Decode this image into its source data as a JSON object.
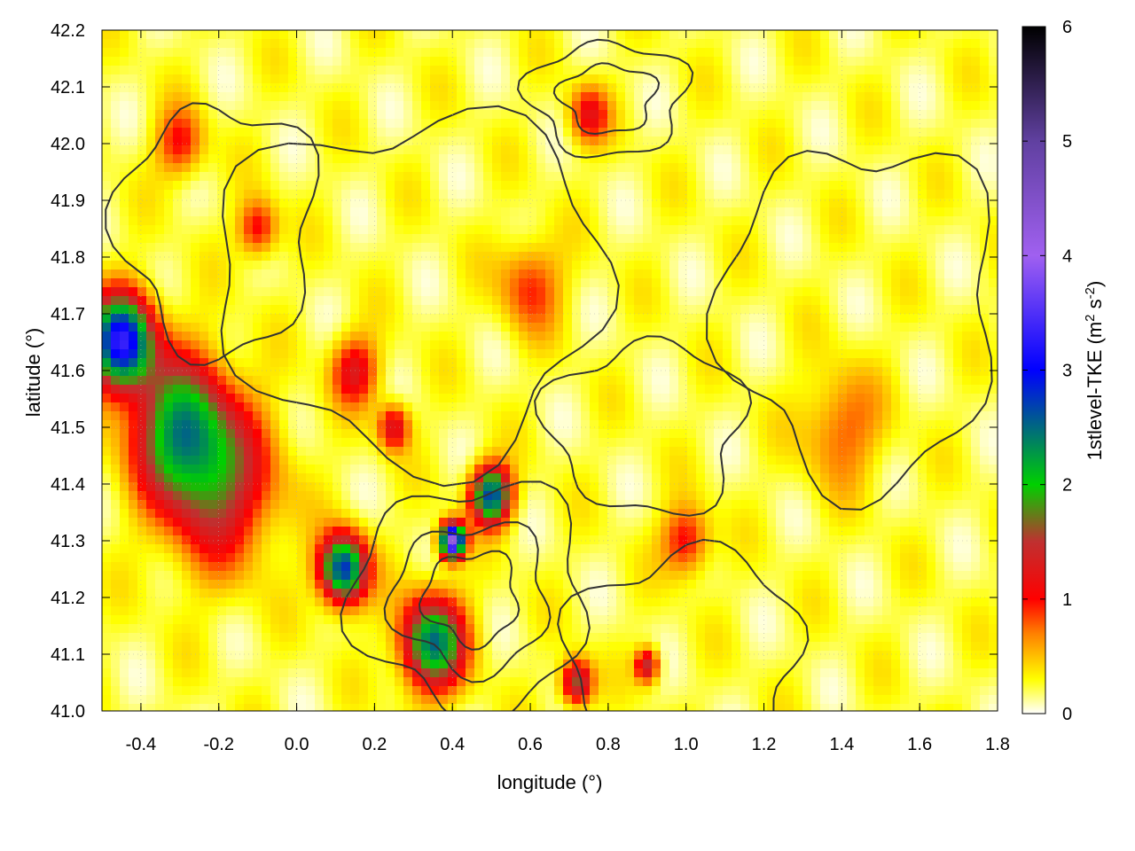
{
  "chart_data": {
    "type": "heatmap",
    "xlabel": "longitude (°)",
    "ylabel": "latitude (°)",
    "xlim": [
      -0.5,
      1.8
    ],
    "ylim": [
      41.0,
      42.2
    ],
    "xticks": [
      "-0.4",
      "-0.2",
      "0.0",
      "0.2",
      "0.4",
      "0.6",
      "0.8",
      "1.0",
      "1.2",
      "1.4",
      "1.6",
      "1.8"
    ],
    "xtick_values": [
      -0.4,
      -0.2,
      0.0,
      0.2,
      0.4,
      0.6,
      0.8,
      1.0,
      1.2,
      1.4,
      1.6,
      1.8
    ],
    "yticks": [
      "41.0",
      "41.1",
      "41.2",
      "41.3",
      "41.4",
      "41.5",
      "41.6",
      "41.7",
      "41.8",
      "41.9",
      "42.0",
      "42.1",
      "42.2"
    ],
    "ytick_values": [
      41.0,
      41.1,
      41.2,
      41.3,
      41.4,
      41.5,
      41.6,
      41.7,
      41.8,
      41.9,
      42.0,
      42.1,
      42.2
    ],
    "grid": true,
    "colorbar": {
      "label": "1stlevel-TKE (m² s⁻²)",
      "label_main": "1stlevel-TKE (m",
      "label_sup1": "2",
      "label_mid": " s",
      "label_sup2": "-2",
      "label_end": ")",
      "range": [
        0,
        6
      ],
      "ticks": [
        "0",
        "1",
        "2",
        "3",
        "4",
        "5",
        "6"
      ],
      "tick_values": [
        0,
        1,
        2,
        3,
        4,
        5,
        6
      ],
      "stops": [
        {
          "value": 0.0,
          "color": "#ffffff"
        },
        {
          "value": 0.3,
          "color": "#ffff00"
        },
        {
          "value": 0.7,
          "color": "#ff8000"
        },
        {
          "value": 1.0,
          "color": "#ff0000"
        },
        {
          "value": 1.5,
          "color": "#c03030"
        },
        {
          "value": 2.0,
          "color": "#00d000"
        },
        {
          "value": 3.0,
          "color": "#0000ff"
        },
        {
          "value": 4.0,
          "color": "#a060f0"
        },
        {
          "value": 5.0,
          "color": "#6040a0"
        },
        {
          "value": 6.0,
          "color": "#000000"
        }
      ]
    },
    "hotspots": [
      {
        "lon": -0.45,
        "lat": 41.65,
        "tke": 3.0,
        "r": 0.08
      },
      {
        "lon": -0.3,
        "lat": 41.5,
        "tke": 1.8,
        "r": 0.12
      },
      {
        "lon": -0.2,
        "lat": 41.4,
        "tke": 1.3,
        "r": 0.14
      },
      {
        "lon": 0.12,
        "lat": 41.25,
        "tke": 2.6,
        "r": 0.06
      },
      {
        "lon": 0.35,
        "lat": 41.12,
        "tke": 2.2,
        "r": 0.08
      },
      {
        "lon": 0.4,
        "lat": 41.3,
        "tke": 4.0,
        "r": 0.03
      },
      {
        "lon": 0.5,
        "lat": 41.38,
        "tke": 2.5,
        "r": 0.05
      },
      {
        "lon": 0.15,
        "lat": 41.6,
        "tke": 1.0,
        "r": 0.06
      },
      {
        "lon": 0.25,
        "lat": 41.5,
        "tke": 1.1,
        "r": 0.04
      },
      {
        "lon": -0.1,
        "lat": 41.85,
        "tke": 0.9,
        "r": 0.05
      },
      {
        "lon": -0.3,
        "lat": 42.0,
        "tke": 0.8,
        "r": 0.06
      },
      {
        "lon": 0.75,
        "lat": 42.05,
        "tke": 0.9,
        "r": 0.05
      },
      {
        "lon": 0.72,
        "lat": 41.05,
        "tke": 1.5,
        "r": 0.04
      },
      {
        "lon": 0.9,
        "lat": 41.08,
        "tke": 1.3,
        "r": 0.03
      },
      {
        "lon": 1.0,
        "lat": 41.3,
        "tke": 0.9,
        "r": 0.06
      },
      {
        "lon": 1.4,
        "lat": 41.5,
        "tke": 0.6,
        "r": 0.1
      },
      {
        "lon": 0.6,
        "lat": 41.75,
        "tke": 0.7,
        "r": 0.08
      }
    ]
  }
}
